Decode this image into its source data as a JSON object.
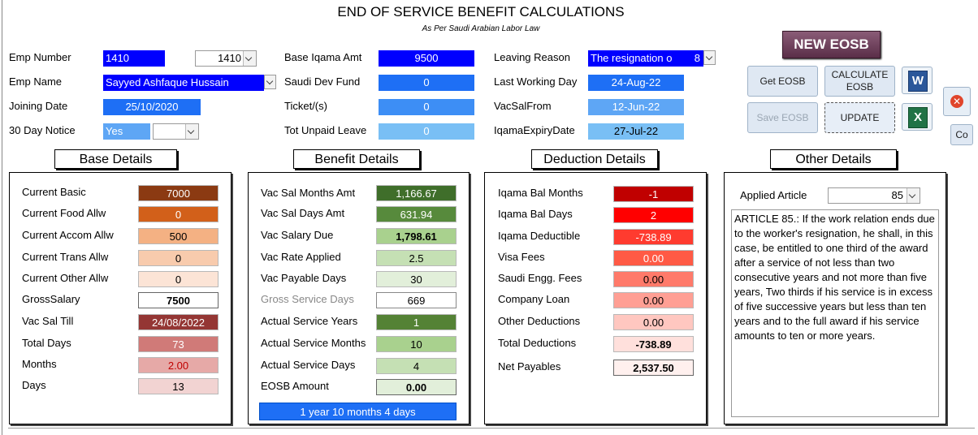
{
  "header": {
    "title": "END OF SERVICE BENEFIT CALCULATIONS",
    "subtitle": "As Per Saudi Arabian Labor Law"
  },
  "form": {
    "emp_number_label": "Emp Number",
    "emp_number_value": "1410",
    "emp_number_combo": "1410",
    "emp_name_label": "Emp Name",
    "emp_name_value": "Sayyed Ashfaque Hussain",
    "joining_date_label": "Joining Date",
    "joining_date_value": "25/10/2020",
    "notice_label": "30 Day Notice",
    "notice_value": "Yes",
    "notice_combo": "",
    "base_iqama_label": "Base Iqama Amt",
    "base_iqama_value": "9500",
    "saudi_dev_label": "Saudi Dev Fund",
    "saudi_dev_value": "0",
    "ticket_label": "Ticket/(s)",
    "ticket_value": "0",
    "unpaid_leave_label": "Tot Unpaid Leave",
    "unpaid_leave_value": "0",
    "leaving_reason_label": "Leaving Reason",
    "leaving_reason_value": "The resignation o",
    "leaving_reason_code": "8",
    "last_working_label": "Last Working Day",
    "last_working_value": "24-Aug-22",
    "vacsal_from_label": "VacSalFrom",
    "vacsal_from_value": "12-Jun-22",
    "iqama_expiry_label": "IqamaExpiryDate",
    "iqama_expiry_value": "27-Jul-22"
  },
  "buttons": {
    "new_eosb": "NEW EOSB",
    "get_eosb": "Get EOSB",
    "calculate_eosb_1": "CALCULATE",
    "calculate_eosb_2": "EOSB",
    "save_eosb": "Save EOSB",
    "update": "UPDATE",
    "word_icon": "W",
    "excel_icon": "X",
    "co": "Co"
  },
  "base_details": {
    "heading": "Base Details",
    "rows": [
      {
        "label": "Current Basic",
        "value": "7000"
      },
      {
        "label": "Current Food Allw",
        "value": "0"
      },
      {
        "label": "Current Accom Allw",
        "value": "500"
      },
      {
        "label": "Current Trans Allw",
        "value": "0"
      },
      {
        "label": "Current Other Allw",
        "value": "0"
      },
      {
        "label": "GrossSalary",
        "value": "7500"
      },
      {
        "label": "Vac Sal Till",
        "value": "24/08/2022"
      },
      {
        "label": "Total Days",
        "value": "73"
      },
      {
        "label": "Months",
        "value": "2.00"
      },
      {
        "label": "Days",
        "value": "13"
      }
    ]
  },
  "benefit_details": {
    "heading": "Benefit Details",
    "rows": [
      {
        "label": "Vac Sal Months Amt",
        "value": "1,166.67"
      },
      {
        "label": "Vac Sal Days Amt",
        "value": "631.94"
      },
      {
        "label": "Vac Salary Due",
        "value": "1,798.61"
      },
      {
        "label": "Vac Rate Applied",
        "value": "2.5"
      },
      {
        "label": "Vac Payable Days",
        "value": "30"
      },
      {
        "label": "Gross Service Days",
        "value": "669"
      },
      {
        "label": "Actual Service Years",
        "value": "1"
      },
      {
        "label": "Actual Service Months",
        "value": "10"
      },
      {
        "label": "Actual Service Days",
        "value": "4"
      },
      {
        "label": "EOSB Amount",
        "value": "0.00"
      }
    ],
    "summary": "1 year 10 months 4 days"
  },
  "deduction_details": {
    "heading": "Deduction Details",
    "rows": [
      {
        "label": "Iqama Bal Months",
        "value": "-1"
      },
      {
        "label": "Iqama Bal Days",
        "value": "2"
      },
      {
        "label": "Iqama Deductible",
        "value": "-738.89"
      },
      {
        "label": "Visa Fees",
        "value": "0.00"
      },
      {
        "label": "Saudi Engg. Fees",
        "value": "0.00"
      },
      {
        "label": "Company Loan",
        "value": "0.00"
      },
      {
        "label": "Other Deductions",
        "value": "0.00"
      },
      {
        "label": "Total Deductions",
        "value": "-738.89"
      },
      {
        "label": "Net Payables",
        "value": "2,537.50"
      }
    ]
  },
  "other_details": {
    "heading": "Other Details",
    "applied_article_label": "Applied Article",
    "applied_article_value": "85",
    "article_text": "ARTICLE 85.: If the work relation ends due to the worker's resignation, he shall, in this case, be entitled to one third of the award after a service of not less than two consecutive years and not more than five years, Two thirds if his service is in excess of five successive years but less than ten years and to the full award if his service amounts to ten or more years."
  },
  "colors": {
    "base": [
      "#8b3a12",
      "#d2601a",
      "#f4b183",
      "#f8cbad",
      "#fce4d6",
      "#ffffff",
      "#943634",
      "#d07a78",
      "#e6a9a7",
      "#f2d3d2"
    ],
    "benefit": [
      "#3f6e2a",
      "#578a3c",
      "#a9d18e",
      "#c5e0b4",
      "#e2efda",
      "#ffffff",
      "#548235",
      "#a9d18e",
      "#c5e0b4",
      "#e2efda"
    ],
    "deduction": [
      "#c00000",
      "#ff0000",
      "#ff3b2f",
      "#ff5a45",
      "#ff7a6a",
      "#ff9f94",
      "#ffc7c0",
      "#ffe0dc",
      "#fff0ee"
    ]
  }
}
